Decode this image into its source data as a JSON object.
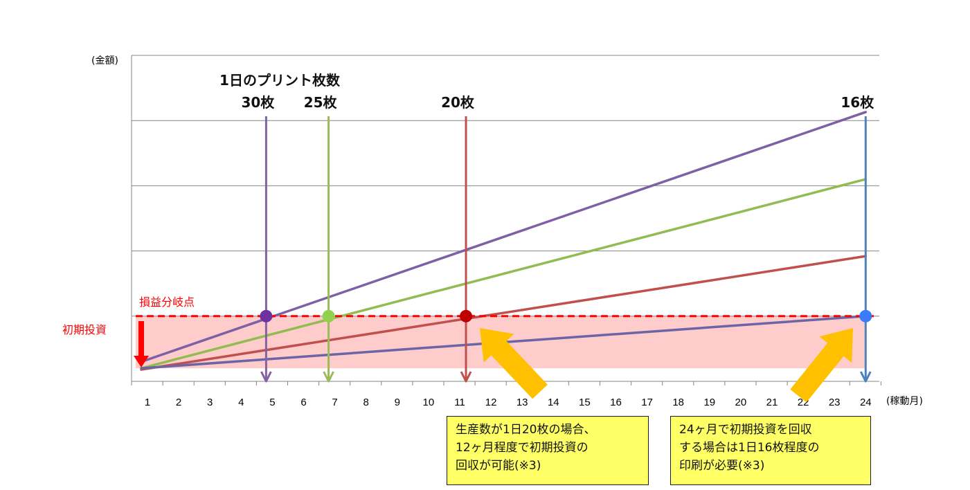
{
  "chart_data": {
    "type": "line",
    "title": "1日のプリント枚数",
    "xlabel": "(稼動月)",
    "ylabel": "(金額)",
    "x": [
      1,
      24
    ],
    "xticks": [
      1,
      2,
      3,
      4,
      5,
      6,
      7,
      8,
      9,
      10,
      11,
      12,
      13,
      14,
      15,
      16,
      17,
      18,
      19,
      20,
      21,
      22,
      23,
      24
    ],
    "xlim": [
      0.5,
      24.5
    ],
    "ylim": [
      0,
      5
    ],
    "grid": true,
    "initial_investment_label": "初期投資",
    "break_even_label": "損益分岐点",
    "initial_investment": 1.0,
    "start_values": {
      "30": 0.3,
      "25": 0.2,
      "20": 0.18,
      "16": 0.2
    },
    "series": [
      {
        "name": "30枚",
        "values": [
          0.3,
          4.13
        ],
        "color": "#7f5fa5",
        "break_even_month": 4.8
      },
      {
        "name": "25枚",
        "values": [
          0.2,
          3.1
        ],
        "color": "#92bb51",
        "break_even_month": 6.8
      },
      {
        "name": "20枚",
        "values": [
          0.18,
          1.92
        ],
        "color": "#c0504d",
        "break_even_month": 11.2
      },
      {
        "name": "16枚",
        "values": [
          0.2,
          1.0
        ],
        "color": "#6a65a4",
        "break_even_month": 24
      }
    ],
    "marker_colors": {
      "30枚": "#7030a0",
      "25枚": "#92d050",
      "20枚": "#c00000",
      "16枚": "#3b7bf7"
    },
    "drop_line_colors": {
      "30枚": "#8064a2",
      "25枚": "#9bbb59",
      "20枚": "#c0504d",
      "16枚": "#4f81bd"
    },
    "accent_red": "#ff0000",
    "shade_color": "#ffcccc",
    "arrow_color": "#ffc000"
  },
  "annotations": {
    "box_left": "生産数が1日20枚の場合、\n12ヶ月程度で初期投資の\n回収が可能(※3)",
    "box_right": "24ヶ月で初期投資を回収\nする場合は1日16枚程度の\n印刷が必要(※3)"
  }
}
